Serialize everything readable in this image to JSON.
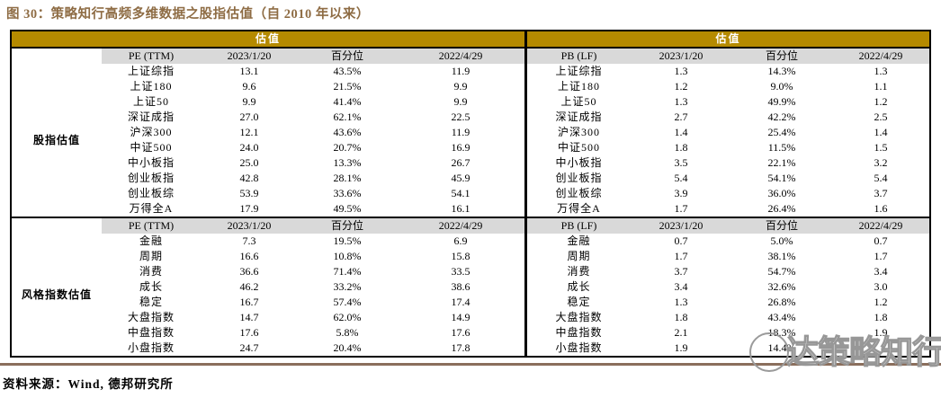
{
  "figure_title": "图 30：策略知行高频多维数据之股指估值（自 2010 年以来）",
  "source_note": "资料来源：Wind, 德邦研究所",
  "watermark": {
    "text": "达策略知行",
    "logo": "circle-logo"
  },
  "colors": {
    "banner_gold": "#B58A00",
    "header_gray": "#D9D9D9",
    "title_brown": "#8E6C44",
    "rule_brown": "#8A6E5C",
    "border_black": "#000000"
  },
  "chart_data": {
    "type": "table",
    "title": "图 30：策略知行高频多维数据之股指估值（自 2010 年以来）",
    "banner_label": "估值",
    "panels": [
      {
        "metric": "PE (TTM)",
        "columns": [
          "PE (TTM)",
          "2023/1/20",
          "百分位",
          "2022/4/29"
        ],
        "sections": [
          {
            "group_label": "股指估值",
            "rows": [
              [
                "上证综指",
                "13.1",
                "43.5%",
                "11.9"
              ],
              [
                "上证180",
                "9.6",
                "21.5%",
                "9.9"
              ],
              [
                "上证50",
                "9.9",
                "41.4%",
                "9.9"
              ],
              [
                "深证成指",
                "27.0",
                "62.1%",
                "22.5"
              ],
              [
                "沪深300",
                "12.1",
                "43.6%",
                "11.9"
              ],
              [
                "中证500",
                "24.0",
                "20.7%",
                "16.9"
              ],
              [
                "中小板指",
                "25.0",
                "13.3%",
                "26.7"
              ],
              [
                "创业板指",
                "42.8",
                "28.1%",
                "45.9"
              ],
              [
                "创业板综",
                "53.9",
                "33.6%",
                "54.1"
              ],
              [
                "万得全A",
                "17.9",
                "49.5%",
                "16.1"
              ]
            ]
          },
          {
            "group_label": "风格指数估值",
            "rows": [
              [
                "金融",
                "7.3",
                "19.5%",
                "6.9"
              ],
              [
                "周期",
                "16.6",
                "10.8%",
                "15.8"
              ],
              [
                "消费",
                "36.6",
                "71.4%",
                "33.5"
              ],
              [
                "成长",
                "46.2",
                "33.2%",
                "38.6"
              ],
              [
                "稳定",
                "16.7",
                "57.4%",
                "17.4"
              ],
              [
                "大盘指数",
                "14.7",
                "62.0%",
                "14.9"
              ],
              [
                "中盘指数",
                "17.6",
                "5.8%",
                "17.6"
              ],
              [
                "小盘指数",
                "24.7",
                "20.4%",
                "17.8"
              ]
            ]
          }
        ]
      },
      {
        "metric": "PB (LF)",
        "columns": [
          "PB (LF)",
          "2023/1/20",
          "百分位",
          "2022/4/29"
        ],
        "sections": [
          {
            "rows": [
              [
                "上证综指",
                "1.3",
                "14.3%",
                "1.3"
              ],
              [
                "上证180",
                "1.2",
                "9.0%",
                "1.1"
              ],
              [
                "上证50",
                "1.3",
                "49.9%",
                "1.2"
              ],
              [
                "深证成指",
                "2.7",
                "42.2%",
                "2.5"
              ],
              [
                "沪深300",
                "1.4",
                "25.4%",
                "1.4"
              ],
              [
                "中证500",
                "1.8",
                "11.5%",
                "1.5"
              ],
              [
                "中小板指",
                "3.5",
                "22.1%",
                "3.2"
              ],
              [
                "创业板指",
                "5.4",
                "54.1%",
                "5.4"
              ],
              [
                "创业板综",
                "3.9",
                "36.0%",
                "3.7"
              ],
              [
                "万得全A",
                "1.7",
                "26.4%",
                "1.6"
              ]
            ]
          },
          {
            "rows": [
              [
                "金融",
                "0.7",
                "5.0%",
                "0.7"
              ],
              [
                "周期",
                "1.7",
                "38.1%",
                "1.7"
              ],
              [
                "消费",
                "3.7",
                "54.7%",
                "3.4"
              ],
              [
                "成长",
                "3.4",
                "32.6%",
                "3.0"
              ],
              [
                "稳定",
                "1.3",
                "26.8%",
                "1.2"
              ],
              [
                "大盘指数",
                "1.8",
                "43.4%",
                "1.8"
              ],
              [
                "中盘指数",
                "2.1",
                "18.3%",
                "1.9"
              ],
              [
                "小盘指数",
                "1.9",
                "14.4%",
                ""
              ]
            ]
          }
        ]
      }
    ]
  }
}
